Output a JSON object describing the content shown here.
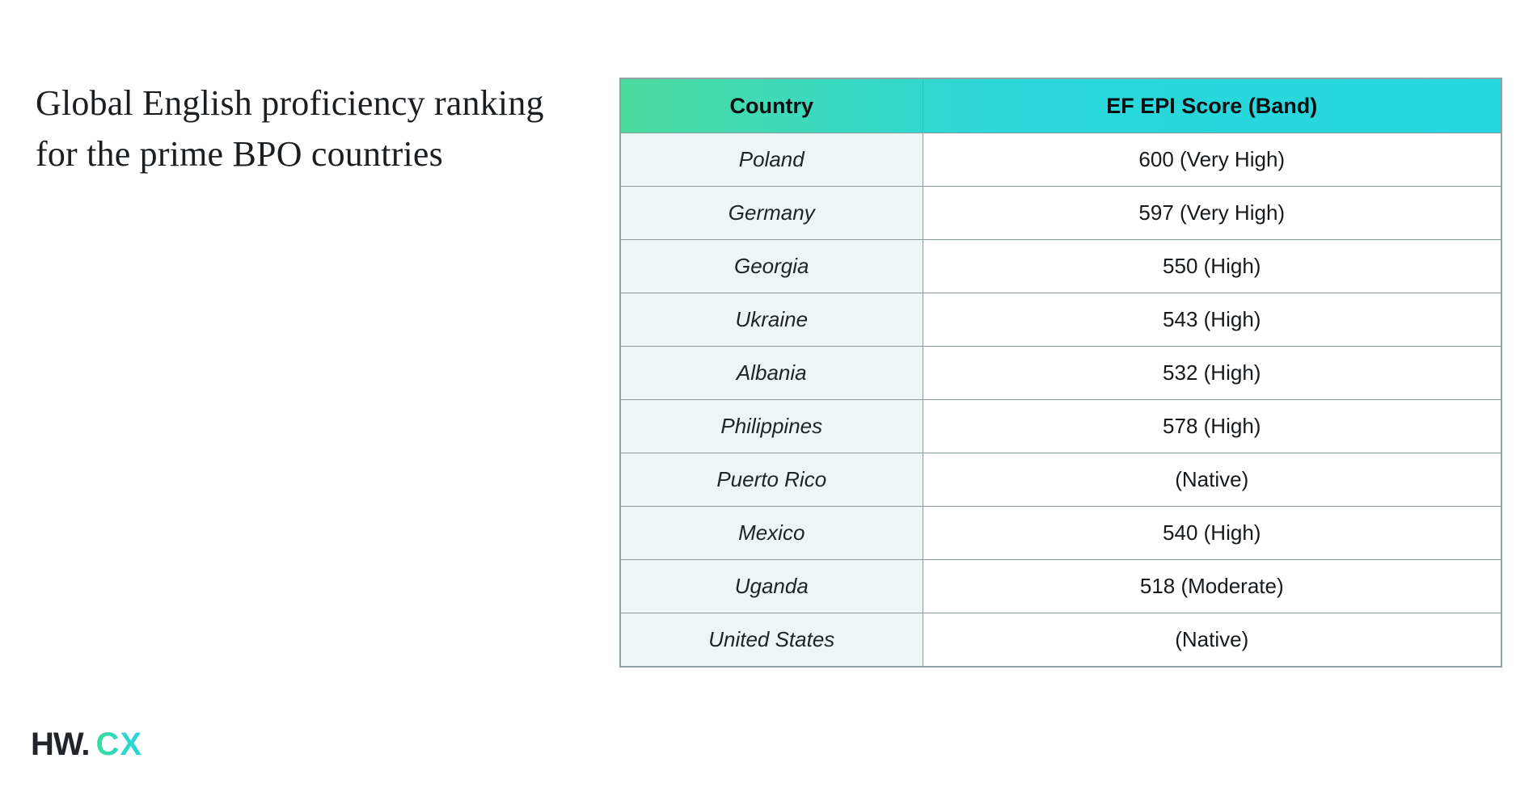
{
  "title": {
    "line1": "Global English proficiency ranking",
    "line2": "for the prime BPO countries"
  },
  "table": {
    "columns": [
      "Country",
      "EF EPI Score (Band)"
    ],
    "rows": [
      {
        "country": "Poland",
        "score": "600 (Very High)"
      },
      {
        "country": "Germany",
        "score": "597 (Very High)"
      },
      {
        "country": "Georgia",
        "score": "550 (High)"
      },
      {
        "country": "Ukraine",
        "score": "543 (High)"
      },
      {
        "country": "Albania",
        "score": "532 (High)"
      },
      {
        "country": "Philippines",
        "score": "578 (High)"
      },
      {
        "country": "Puerto Rico",
        "score": "(Native)"
      },
      {
        "country": "Mexico",
        "score": "540 (High)"
      },
      {
        "country": "Uganda",
        "score": "518 (Moderate)"
      },
      {
        "country": "United States",
        "score": "(Native)"
      }
    ]
  },
  "chart_data": {
    "type": "table",
    "title": "Global English proficiency ranking for the prime BPO countries",
    "columns": [
      "Country",
      "EF EPI Score (Band)"
    ],
    "countries": [
      "Poland",
      "Germany",
      "Georgia",
      "Ukraine",
      "Albania",
      "Philippines",
      "Puerto Rico",
      "Mexico",
      "Uganda",
      "United States"
    ],
    "scores": [
      600,
      597,
      550,
      543,
      532,
      578,
      null,
      540,
      518,
      null
    ],
    "bands": [
      "Very High",
      "Very High",
      "High",
      "High",
      "High",
      "High",
      "Native",
      "High",
      "Moderate",
      "Native"
    ]
  },
  "logo": {
    "black_part": "HW.",
    "teal_part": "CX"
  },
  "colors": {
    "header_gradient_start": "#4cdb9e",
    "header_gradient_end": "#24d7de",
    "country_cell_bg": "#edf6f6",
    "table_border": "#8a979b",
    "logo_black": "#212529",
    "logo_teal_start": "#38dda0",
    "logo_teal_end": "#28d3e0"
  }
}
